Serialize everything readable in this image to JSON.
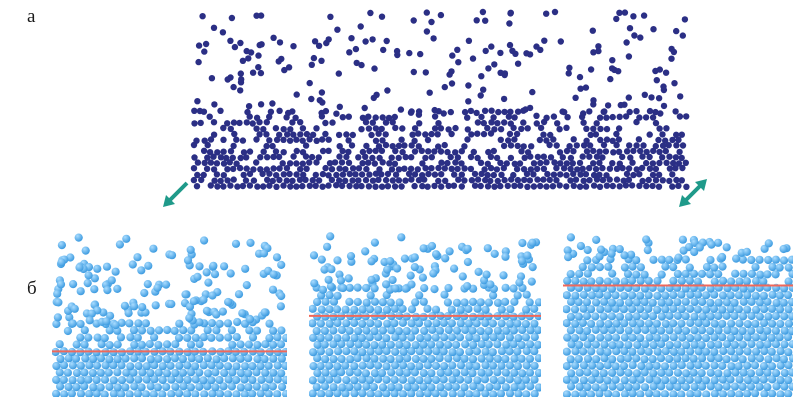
{
  "labels": {
    "a": "а",
    "b": "б"
  },
  "colors": {
    "dark_particle": "#2b2f85",
    "light_particle": "#3d9be0",
    "light_particle_highlight": "#a9dcff",
    "interface_line": "#f0685a",
    "arrow": "#1f9a8a"
  },
  "panels_b": [
    {
      "name": "left",
      "interface_level": 0.27
    },
    {
      "name": "middle",
      "interface_level": 0.48
    },
    {
      "name": "right",
      "interface_level": 0.66
    }
  ]
}
